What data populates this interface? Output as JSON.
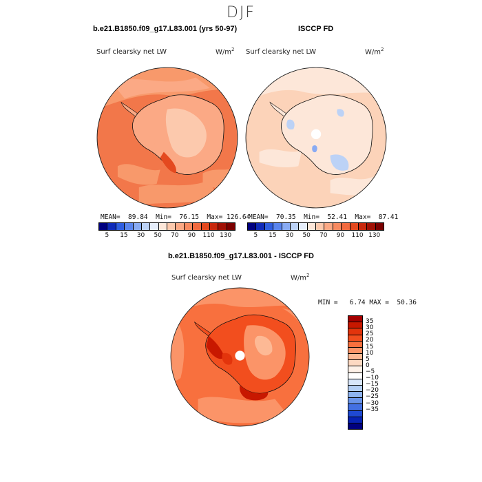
{
  "season": "DJF",
  "panel_a": {
    "title": "b.e21.B1850.f09_g17.L83.001 (yrs 50-97)",
    "variable": "Surf clearsky net LW",
    "units": "W/m",
    "units_exp": "2",
    "stats": "MEAN=  89.84  Min=  76.15  Max= 126.64"
  },
  "panel_b": {
    "title": "ISCCP FD",
    "variable": "Surf clearsky net LW",
    "units": "W/m",
    "units_exp": "2",
    "stats": "MEAN=  70.35  Min=  52.41  Max=  87.41"
  },
  "panel_c": {
    "title": "b.e21.B1850.f09_g17.L83.001 - ISCCP FD",
    "variable": "Surf clearsky net LW",
    "units": "W/m",
    "units_exp": "2",
    "stats": "MIN =   6.74 MAX =  50.36"
  },
  "abs_colorbar": {
    "colors": [
      "#00007f",
      "#0f2ab8",
      "#2f5ee0",
      "#5a85ee",
      "#89abf3",
      "#bcd2f6",
      "#e6eefb",
      "#fde7d9",
      "#fcc9ad",
      "#fba985",
      "#f88a60",
      "#f26a3f",
      "#e4491f",
      "#c8280d",
      "#a01005",
      "#7a0000"
    ],
    "labels": [
      "5",
      "15",
      "30",
      "50",
      "70",
      "90",
      "110",
      "130"
    ]
  },
  "diff_colorbar": {
    "colors": [
      "#a40000",
      "#c81800",
      "#e3340c",
      "#f24e1e",
      "#f8703e",
      "#fb9468",
      "#fdb995",
      "#fdd9c2",
      "#fdf1e8",
      "#ffffff",
      "#d8e6fa",
      "#b4cff5",
      "#8eb4f0",
      "#6994ea",
      "#4370e2",
      "#1f49d2",
      "#0722b4",
      "#00007f"
    ],
    "labels": [
      "35",
      "30",
      "25",
      "20",
      "15",
      "10",
      "5",
      "0",
      "−5",
      "−10",
      "−15",
      "−20",
      "−25",
      "−30",
      "−35"
    ]
  }
}
